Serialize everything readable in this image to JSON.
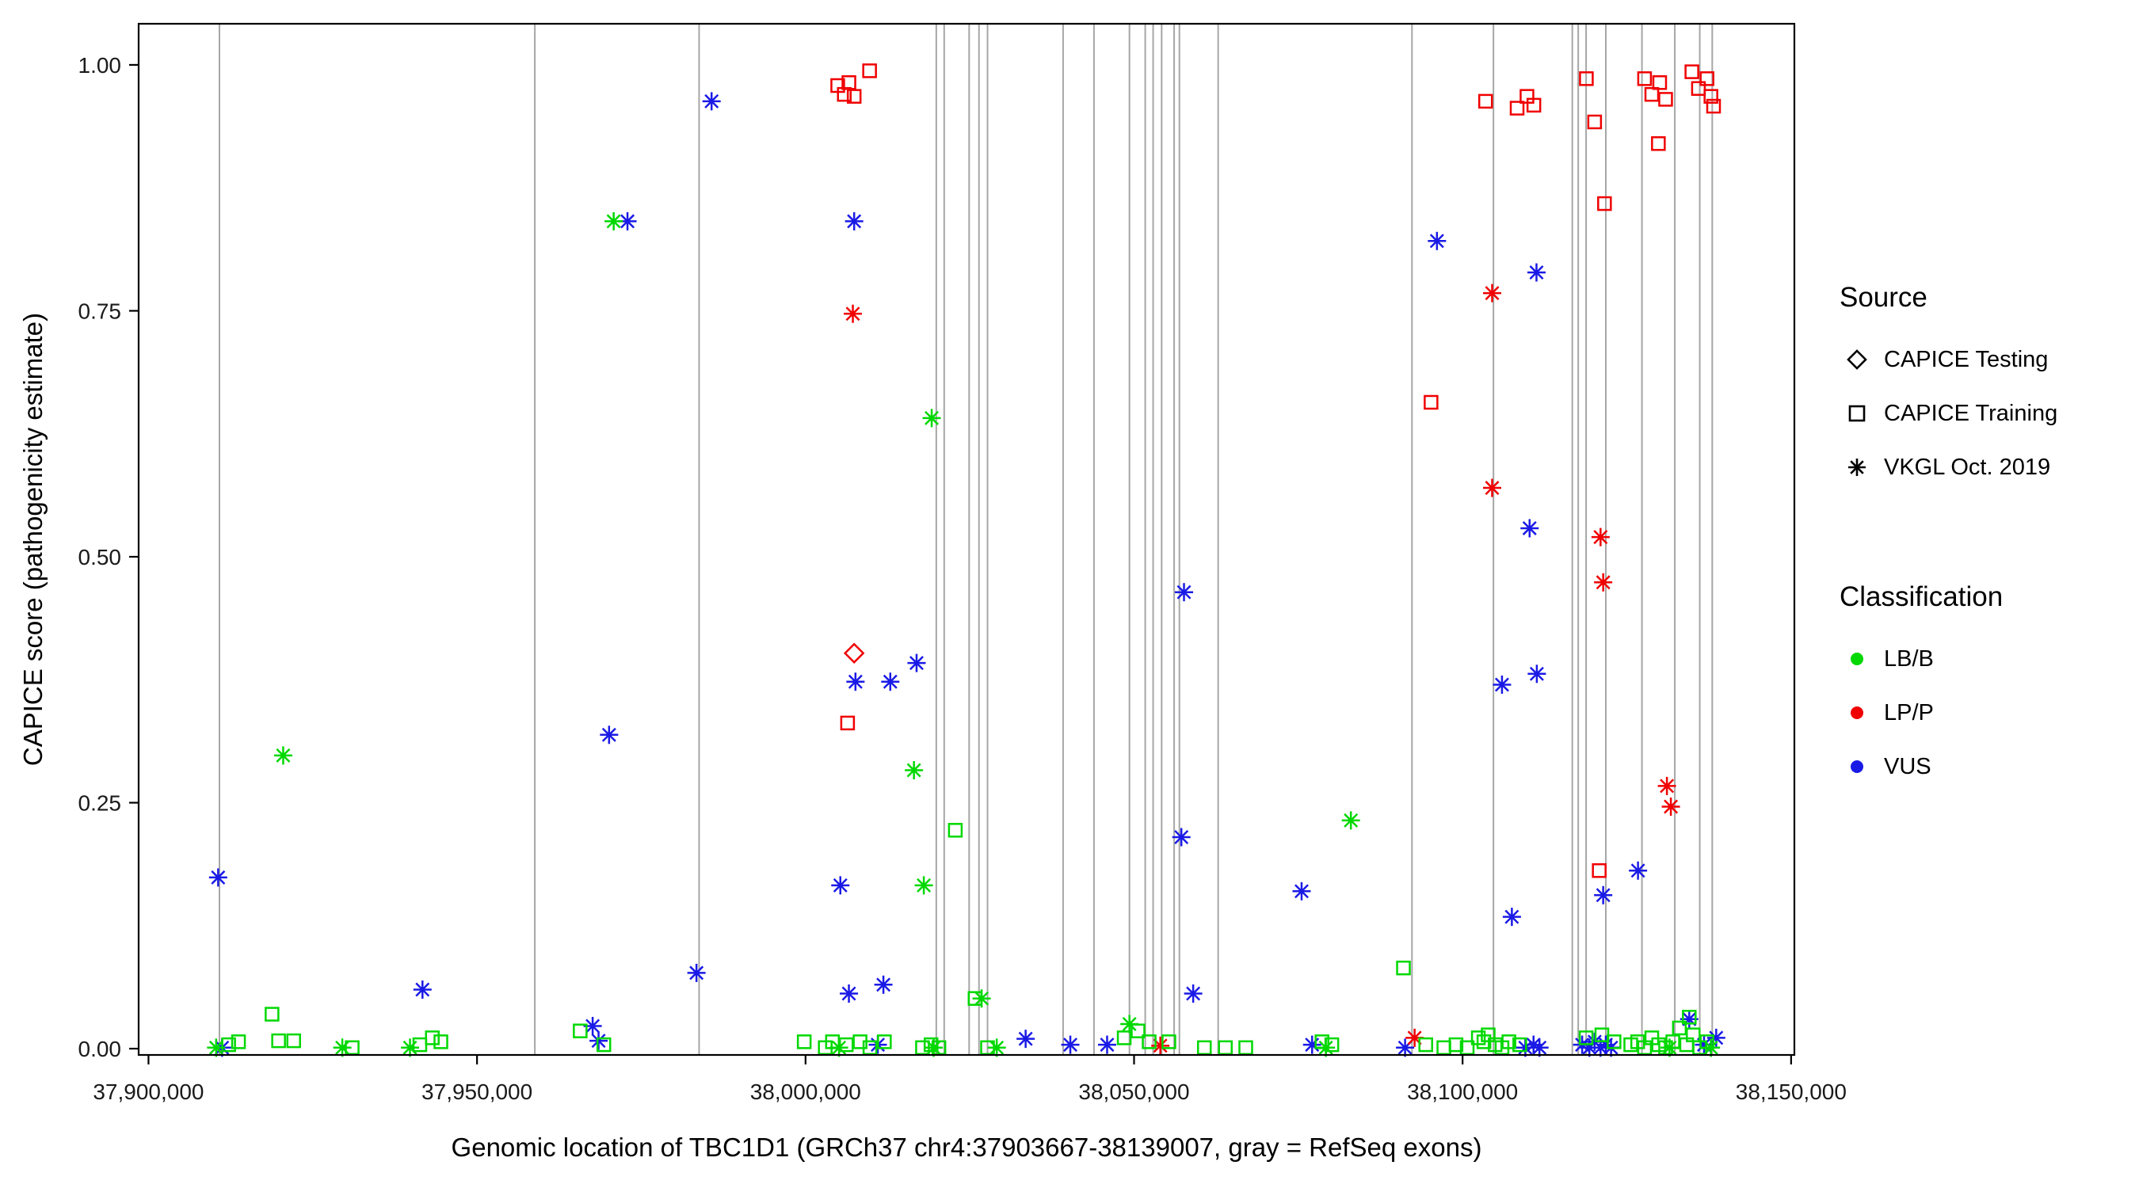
{
  "chart_data": {
    "type": "scatter",
    "title": "",
    "xlabel": "Genomic location of TBC1D1 (GRCh37 chr4:37903667-38139007, gray = RefSeq exons)",
    "ylabel": "CAPICE score (pathogenicity estimate)",
    "xlim": [
      37898500,
      38150500
    ],
    "ylim": [
      -0.0064,
      1.0418
    ],
    "x_ticks": [
      {
        "value": 37900000,
        "label": "37,900,000"
      },
      {
        "value": 37950000,
        "label": "37,950,000"
      },
      {
        "value": 38000000,
        "label": "38,000,000"
      },
      {
        "value": 38050000,
        "label": "38,050,000"
      },
      {
        "value": 38100000,
        "label": "38,100,000"
      },
      {
        "value": 38150000,
        "label": "38,150,000"
      }
    ],
    "y_ticks": [
      {
        "value": 0.0,
        "label": "0.00"
      },
      {
        "value": 0.25,
        "label": "0.25"
      },
      {
        "value": 0.5,
        "label": "0.50"
      },
      {
        "value": 0.75,
        "label": "0.75"
      },
      {
        "value": 1.0,
        "label": "1.00"
      }
    ],
    "grid": false,
    "legend_position": "right",
    "colors": {
      "LB/B": "#00D800",
      "LP/P": "#F00000",
      "VUS": "#1A1AE6",
      "exon": "#A6A6A6",
      "axis": "#000000"
    },
    "source_codes": {
      "T": "CAPICE Testing",
      "R": "CAPICE Training",
      "V": "VKGL Oct. 2019"
    },
    "class_codes": {
      "B": "LB/B",
      "P": "LP/P",
      "U": "VUS"
    },
    "exon_positions": [
      37910800,
      37958800,
      37983800,
      38019900,
      38021100,
      38024900,
      38026400,
      38027700,
      38039200,
      38043900,
      38049300,
      38051700,
      38052900,
      38054200,
      38056100,
      38056900,
      38062800,
      38092300,
      38104700,
      38116700,
      38117600,
      38118800,
      38121800,
      38127300,
      38132300,
      38136100,
      38138000
    ],
    "points": [
      [
        37910600,
        0.174,
        "V",
        "U"
      ],
      [
        37911200,
        0.001,
        "V",
        "U"
      ],
      [
        37941700,
        0.06,
        "V",
        "U"
      ],
      [
        37967600,
        0.023,
        "V",
        "U"
      ],
      [
        37968500,
        0.008,
        "V",
        "U"
      ],
      [
        37970100,
        0.319,
        "V",
        "U"
      ],
      [
        37972900,
        0.841,
        "V",
        "U"
      ],
      [
        37985700,
        0.963,
        "V",
        "U"
      ],
      [
        37983400,
        0.077,
        "V",
        "U"
      ],
      [
        38007400,
        0.841,
        "V",
        "U"
      ],
      [
        38007600,
        0.373,
        "V",
        "U"
      ],
      [
        38012900,
        0.373,
        "V",
        "U"
      ],
      [
        38016900,
        0.392,
        "V",
        "U"
      ],
      [
        38005300,
        0.166,
        "V",
        "U"
      ],
      [
        38006600,
        0.056,
        "V",
        "U"
      ],
      [
        38011850,
        0.065,
        "V",
        "U"
      ],
      [
        38011000,
        0.004,
        "V",
        "U"
      ],
      [
        38033500,
        0.01,
        "V",
        "U"
      ],
      [
        38040300,
        0.004,
        "V",
        "U"
      ],
      [
        38045900,
        0.004,
        "V",
        "U"
      ],
      [
        38057600,
        0.464,
        "V",
        "U"
      ],
      [
        38057200,
        0.215,
        "V",
        "U"
      ],
      [
        38059000,
        0.056,
        "V",
        "U"
      ],
      [
        38075500,
        0.16,
        "V",
        "U"
      ],
      [
        38077100,
        0.004,
        "V",
        "U"
      ],
      [
        38096100,
        0.821,
        "V",
        "U"
      ],
      [
        38091250,
        0.001,
        "V",
        "U"
      ],
      [
        38111250,
        0.789,
        "V",
        "U"
      ],
      [
        38110200,
        0.529,
        "V",
        "U"
      ],
      [
        38106000,
        0.37,
        "V",
        "U"
      ],
      [
        38111300,
        0.381,
        "V",
        "U"
      ],
      [
        38107500,
        0.134,
        "V",
        "U"
      ],
      [
        38109550,
        0.001,
        "V",
        "U"
      ],
      [
        38110800,
        0.004,
        "V",
        "U"
      ],
      [
        38111700,
        0.001,
        "V",
        "U"
      ],
      [
        38121400,
        0.156,
        "V",
        "U"
      ],
      [
        38126700,
        0.181,
        "V",
        "U"
      ],
      [
        38118200,
        0.004,
        "V",
        "U"
      ],
      [
        38119300,
        0.001,
        "V",
        "U"
      ],
      [
        38120100,
        0.007,
        "V",
        "U"
      ],
      [
        38121000,
        0.001,
        "V",
        "U"
      ],
      [
        38121800,
        0.004,
        "V",
        "U"
      ],
      [
        38122600,
        0.001,
        "V",
        "U"
      ],
      [
        38134500,
        0.03,
        "V",
        "U"
      ],
      [
        38136750,
        0.004,
        "V",
        "U"
      ],
      [
        38138600,
        0.011,
        "V",
        "U"
      ],
      [
        37910300,
        0.001,
        "V",
        "B"
      ],
      [
        37920500,
        0.298,
        "V",
        "B"
      ],
      [
        37929500,
        0.001,
        "V",
        "B"
      ],
      [
        37939800,
        0.001,
        "V",
        "B"
      ],
      [
        37970800,
        0.841,
        "V",
        "B"
      ],
      [
        38019200,
        0.641,
        "V",
        "B"
      ],
      [
        38016500,
        0.283,
        "V",
        "B"
      ],
      [
        38018000,
        0.166,
        "V",
        "B"
      ],
      [
        38005100,
        0.001,
        "V",
        "B"
      ],
      [
        38019500,
        0.001,
        "V",
        "B"
      ],
      [
        38026800,
        0.051,
        "V",
        "B"
      ],
      [
        38029100,
        0.001,
        "V",
        "B"
      ],
      [
        38049300,
        0.025,
        "V",
        "B"
      ],
      [
        38079200,
        0.001,
        "V",
        "B"
      ],
      [
        38083000,
        0.232,
        "V",
        "B"
      ],
      [
        38131500,
        0.001,
        "V",
        "B"
      ],
      [
        38137800,
        0.001,
        "V",
        "B"
      ],
      [
        38007200,
        0.747,
        "V",
        "P"
      ],
      [
        38054000,
        0.003,
        "V",
        "P"
      ],
      [
        38092700,
        0.011,
        "V",
        "P"
      ],
      [
        38104500,
        0.768,
        "V",
        "P"
      ],
      [
        38104500,
        0.57,
        "V",
        "P"
      ],
      [
        38121000,
        0.52,
        "V",
        "P"
      ],
      [
        38121400,
        0.474,
        "V",
        "P"
      ],
      [
        38131100,
        0.267,
        "V",
        "P"
      ],
      [
        38131700,
        0.246,
        "V",
        "P"
      ],
      [
        38004900,
        0.979,
        "R",
        "P"
      ],
      [
        38005900,
        0.97,
        "R",
        "P"
      ],
      [
        38006600,
        0.982,
        "R",
        "P"
      ],
      [
        38007400,
        0.968,
        "R",
        "P"
      ],
      [
        38009750,
        0.994,
        "R",
        "P"
      ],
      [
        38006400,
        0.331,
        "R",
        "P"
      ],
      [
        38095200,
        0.657,
        "R",
        "P"
      ],
      [
        38103500,
        0.963,
        "R",
        "P"
      ],
      [
        38108300,
        0.956,
        "R",
        "P"
      ],
      [
        38109800,
        0.968,
        "R",
        "P"
      ],
      [
        38110850,
        0.959,
        "R",
        "P"
      ],
      [
        38118840,
        0.986,
        "R",
        "P"
      ],
      [
        38120100,
        0.942,
        "R",
        "P"
      ],
      [
        38121600,
        0.859,
        "R",
        "P"
      ],
      [
        38120800,
        0.181,
        "R",
        "P"
      ],
      [
        38127700,
        0.986,
        "R",
        "P"
      ],
      [
        38128800,
        0.97,
        "R",
        "P"
      ],
      [
        38130000,
        0.982,
        "R",
        "P"
      ],
      [
        38130900,
        0.965,
        "R",
        "P"
      ],
      [
        38129800,
        0.92,
        "R",
        "P"
      ],
      [
        38134900,
        0.993,
        "R",
        "P"
      ],
      [
        38135900,
        0.976,
        "R",
        "P"
      ],
      [
        38137200,
        0.986,
        "R",
        "P"
      ],
      [
        38137800,
        0.968,
        "R",
        "P"
      ],
      [
        38138200,
        0.958,
        "R",
        "P"
      ],
      [
        38007400,
        0.402,
        "T",
        "P"
      ],
      [
        37912200,
        0.004,
        "R",
        "B"
      ],
      [
        37913700,
        0.007,
        "R",
        "B"
      ],
      [
        37918800,
        0.035,
        "R",
        "B"
      ],
      [
        37919800,
        0.008,
        "R",
        "B"
      ],
      [
        37922100,
        0.008,
        "R",
        "B"
      ],
      [
        37931000,
        0.001,
        "R",
        "B"
      ],
      [
        37941300,
        0.004,
        "R",
        "B"
      ],
      [
        37943200,
        0.011,
        "R",
        "B"
      ],
      [
        37944500,
        0.007,
        "R",
        "B"
      ],
      [
        37965700,
        0.018,
        "R",
        "B"
      ],
      [
        37969300,
        0.004,
        "R",
        "B"
      ],
      [
        37999800,
        0.007,
        "R",
        "B"
      ],
      [
        38003000,
        0.001,
        "R",
        "B"
      ],
      [
        38004100,
        0.007,
        "R",
        "B"
      ],
      [
        38006200,
        0.004,
        "R",
        "B"
      ],
      [
        38008300,
        0.007,
        "R",
        "B"
      ],
      [
        38009800,
        0.001,
        "R",
        "B"
      ],
      [
        38012000,
        0.007,
        "R",
        "B"
      ],
      [
        38017800,
        0.001,
        "R",
        "B"
      ],
      [
        38019100,
        0.004,
        "R",
        "B"
      ],
      [
        38020300,
        0.001,
        "R",
        "B"
      ],
      [
        38022800,
        0.222,
        "R",
        "B"
      ],
      [
        38025800,
        0.051,
        "R",
        "B"
      ],
      [
        38027700,
        0.001,
        "R",
        "B"
      ],
      [
        38048500,
        0.011,
        "R",
        "B"
      ],
      [
        38050600,
        0.018,
        "R",
        "B"
      ],
      [
        38052300,
        0.007,
        "R",
        "B"
      ],
      [
        38055300,
        0.007,
        "R",
        "B"
      ],
      [
        38060700,
        0.001,
        "R",
        "B"
      ],
      [
        38063900,
        0.001,
        "R",
        "B"
      ],
      [
        38067000,
        0.001,
        "R",
        "B"
      ],
      [
        38078600,
        0.007,
        "R",
        "B"
      ],
      [
        38080100,
        0.004,
        "R",
        "B"
      ],
      [
        38091000,
        0.082,
        "R",
        "B"
      ],
      [
        38094400,
        0.004,
        "R",
        "B"
      ],
      [
        38097150,
        0.001,
        "R",
        "B"
      ],
      [
        38099000,
        0.004,
        "R",
        "B"
      ],
      [
        38100700,
        0.001,
        "R",
        "B"
      ],
      [
        38102400,
        0.011,
        "R",
        "B"
      ],
      [
        38103250,
        0.007,
        "R",
        "B"
      ],
      [
        38103900,
        0.014,
        "R",
        "B"
      ],
      [
        38104950,
        0.004,
        "R",
        "B"
      ],
      [
        38106000,
        0.001,
        "R",
        "B"
      ],
      [
        38107050,
        0.007,
        "R",
        "B"
      ],
      [
        38108700,
        0.004,
        "R",
        "B"
      ],
      [
        38118800,
        0.011,
        "R",
        "B"
      ],
      [
        38121200,
        0.014,
        "R",
        "B"
      ],
      [
        38123050,
        0.007,
        "R",
        "B"
      ],
      [
        38125600,
        0.004,
        "R",
        "B"
      ],
      [
        38126650,
        0.007,
        "R",
        "B"
      ],
      [
        38127700,
        0.001,
        "R",
        "B"
      ],
      [
        38128800,
        0.011,
        "R",
        "B"
      ],
      [
        38129850,
        0.004,
        "R",
        "B"
      ],
      [
        38130900,
        0.001,
        "R",
        "B"
      ],
      [
        38132000,
        0.007,
        "R",
        "B"
      ],
      [
        38133000,
        0.021,
        "R",
        "B"
      ],
      [
        38134100,
        0.004,
        "R",
        "B"
      ],
      [
        38134500,
        0.032,
        "R",
        "B"
      ],
      [
        38135100,
        0.014,
        "R",
        "B"
      ],
      [
        38136100,
        0.001,
        "R",
        "B"
      ],
      [
        38137200,
        0.007,
        "R",
        "B"
      ]
    ]
  },
  "legend": {
    "source": {
      "title": "Source",
      "items": [
        {
          "label": "CAPICE Testing",
          "glyph": "diamond"
        },
        {
          "label": "CAPICE Training",
          "glyph": "square"
        },
        {
          "label": "VKGL Oct. 2019",
          "glyph": "asterisk"
        }
      ]
    },
    "classification": {
      "title": "Classification",
      "items": [
        {
          "label": "LB/B",
          "color": "#00D800"
        },
        {
          "label": "LP/P",
          "color": "#F00000"
        },
        {
          "label": "VUS",
          "color": "#1A1AE6"
        }
      ]
    }
  }
}
